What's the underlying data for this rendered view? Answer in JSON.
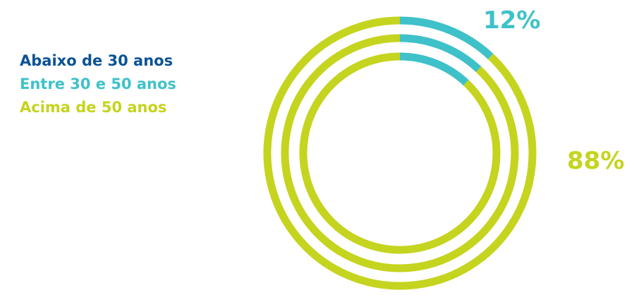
{
  "chart_data": {
    "type": "donut",
    "legend": {
      "placement": "top-left",
      "entries": [
        {
          "label": "Abaixo de 30 anos",
          "color": "#0b5394"
        },
        {
          "label": "Entre 30 e 50 anos",
          "color": "#3fc1c9"
        },
        {
          "label": "Acima de 50 anos",
          "color": "#c5d41e"
        }
      ]
    },
    "rings": [
      {
        "order": "outer",
        "segments": [
          {
            "value": 12,
            "color": "#3fc1c9"
          },
          {
            "value": 88,
            "color": "#c5d41e"
          }
        ]
      },
      {
        "order": "middle",
        "segments": [
          {
            "value": 12,
            "color": "#3fc1c9"
          },
          {
            "value": 88,
            "color": "#c5d41e"
          }
        ]
      },
      {
        "order": "inner",
        "segments": [
          {
            "value": 12,
            "color": "#3fc1c9"
          },
          {
            "value": 88,
            "color": "#c5d41e"
          }
        ]
      }
    ],
    "data_labels": [
      {
        "text": "12%",
        "color": "#3fc1c9"
      },
      {
        "text": "88%",
        "color": "#c5d41e"
      }
    ]
  }
}
